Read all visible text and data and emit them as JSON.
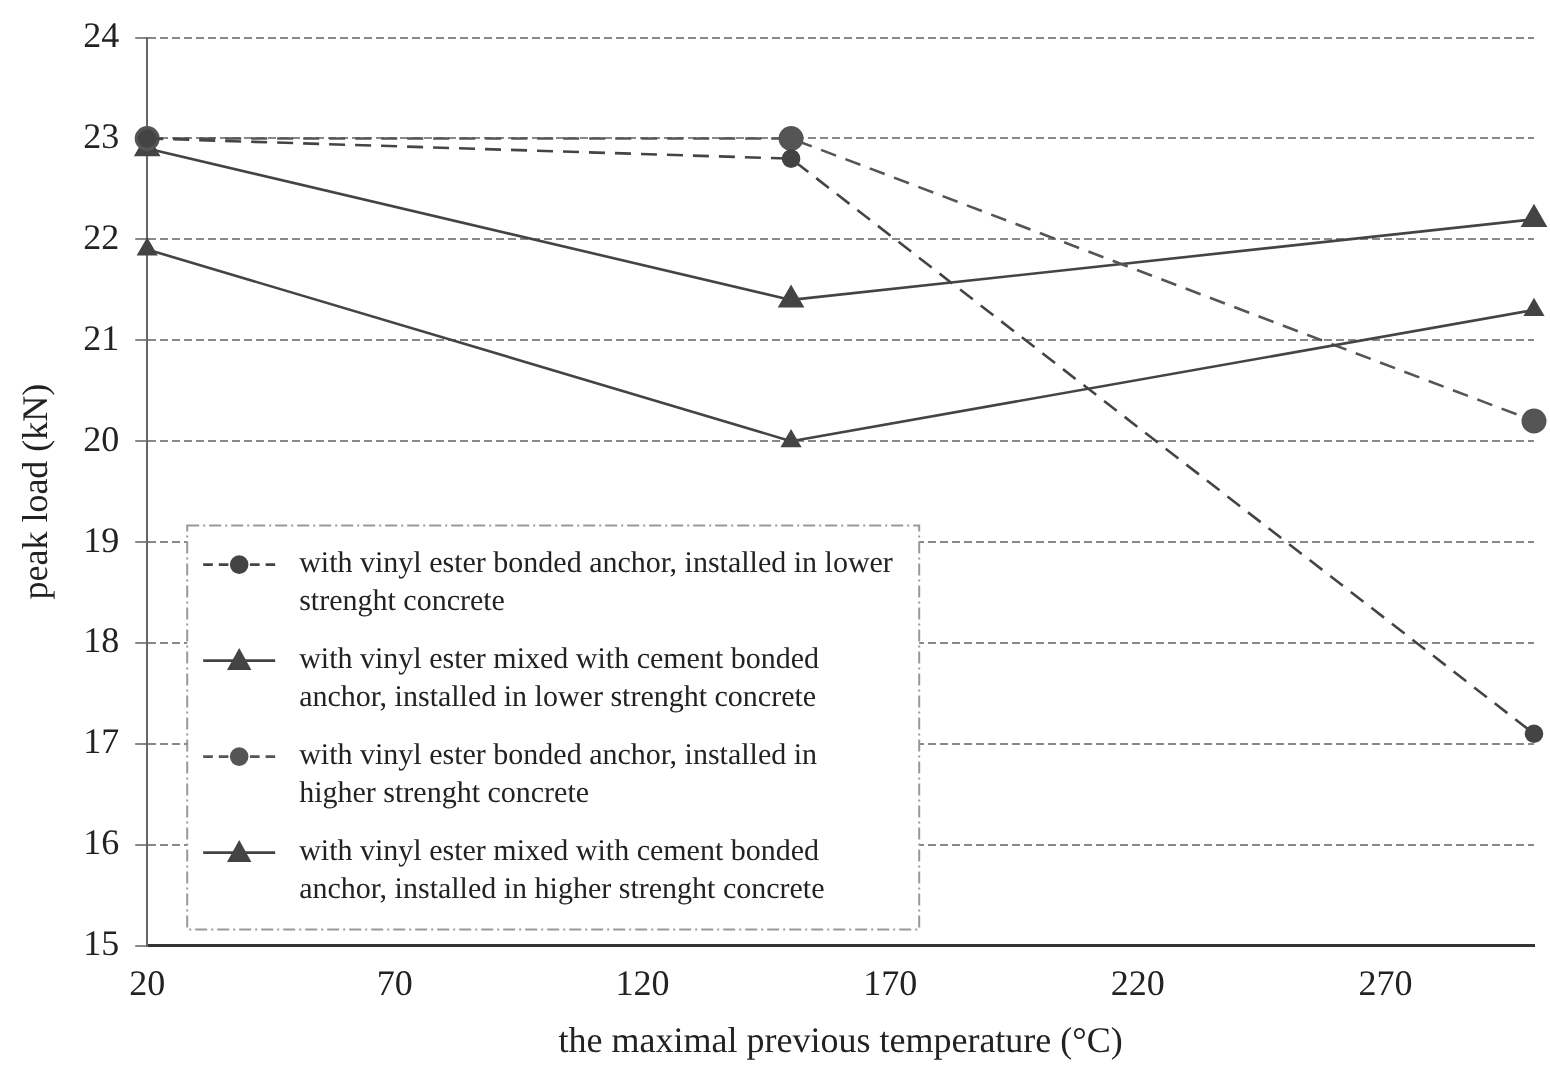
{
  "chart_data": {
    "type": "line",
    "xlabel": "the maximal previous temperature (°C)",
    "ylabel": "peak load (kN)",
    "x": [
      20,
      150,
      300
    ],
    "series": [
      {
        "name": "with vinyl ester bonded anchor, installed in lower strenght concrete",
        "color": "#444444",
        "marker": "circle",
        "line_style": "dashed",
        "values": [
          23.0,
          22.8,
          17.1
        ]
      },
      {
        "name": "with vinyl ester mixed with cement bonded anchor, installed in lower strenght concrete",
        "color": "#444444",
        "marker": "triangle",
        "line_style": "solid",
        "values": [
          21.9,
          20.0,
          21.3
        ]
      },
      {
        "name": "with vinyl ester bonded anchor, installed in higher strenght concrete",
        "color": "#555555",
        "marker": "circle",
        "line_style": "dashed",
        "values": [
          23.0,
          23.0,
          20.2
        ]
      },
      {
        "name": "with vinyl ester mixed with cement bonded anchor, installed in higher strenght concrete",
        "color": "#444444",
        "marker": "triangle",
        "line_style": "solid",
        "values": [
          22.9,
          21.4,
          22.2
        ]
      }
    ],
    "xlim": [
      20,
      300
    ],
    "xticks": [
      20,
      70,
      120,
      170,
      220,
      270
    ],
    "ylim": [
      15,
      24
    ],
    "yticks": [
      15,
      16,
      17,
      18,
      19,
      20,
      21,
      22,
      23,
      24
    ],
    "grid": "y",
    "legend": "bottom left"
  }
}
